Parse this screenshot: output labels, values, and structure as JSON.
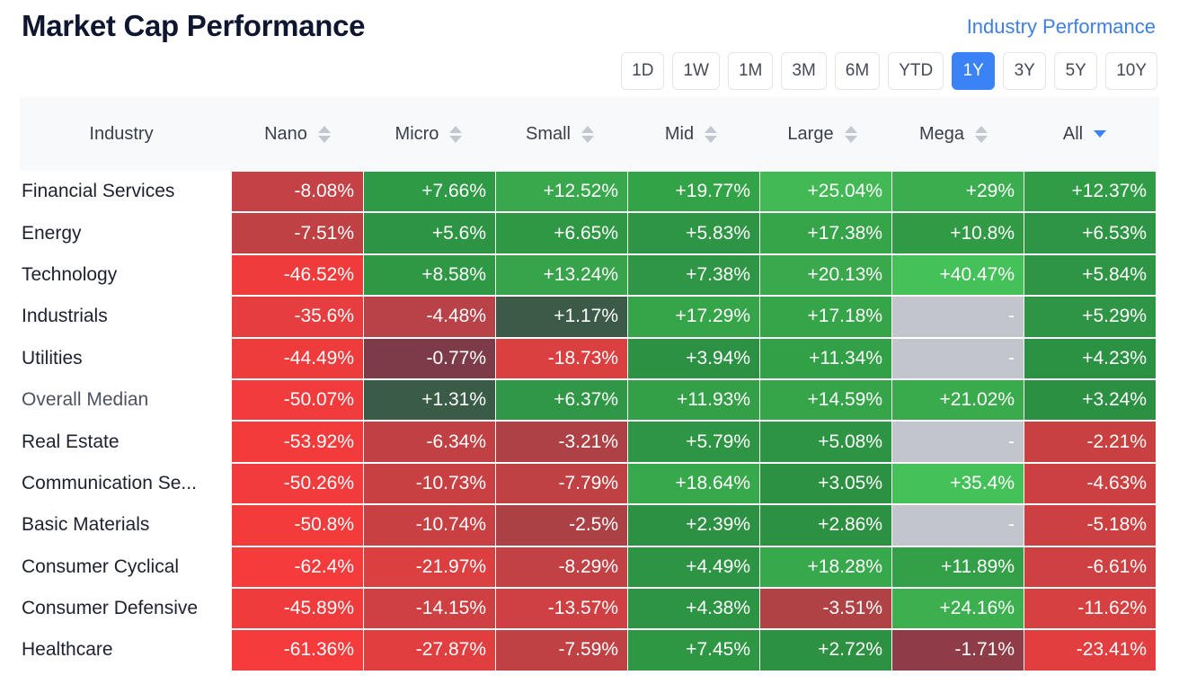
{
  "header": {
    "title": "Market Cap Performance",
    "industry_link": "Industry Performance"
  },
  "periods": [
    "1D",
    "1W",
    "1M",
    "3M",
    "6M",
    "YTD",
    "1Y",
    "3Y",
    "5Y",
    "10Y"
  ],
  "active_period": "1Y",
  "table": {
    "industry_header": "Industry",
    "columns": [
      "Nano",
      "Micro",
      "Small",
      "Mid",
      "Large",
      "Mega",
      "All"
    ],
    "sorted_column": "All",
    "rows": [
      {
        "label": "Financial Services",
        "values": [
          "-8.08%",
          "+7.66%",
          "+12.52%",
          "+19.77%",
          "+25.04%",
          "+29%",
          "+12.37%"
        ],
        "colors": [
          "#c44145",
          "#2e9a45",
          "#39a84c",
          "#33a347",
          "#42b954",
          "#3aae4f",
          "#309d46"
        ]
      },
      {
        "label": "Energy",
        "values": [
          "-7.51%",
          "+5.6%",
          "+6.65%",
          "+5.83%",
          "+17.38%",
          "+10.8%",
          "+6.53%"
        ],
        "colors": [
          "#bf4144",
          "#2c9443",
          "#2f9845",
          "#2d9544",
          "#36a449",
          "#309a45",
          "#2e9544"
        ]
      },
      {
        "label": "Technology",
        "values": [
          "-46.52%",
          "+8.58%",
          "+13.24%",
          "+7.38%",
          "+20.13%",
          "+40.47%",
          "+5.84%"
        ],
        "colors": [
          "#f03b3c",
          "#2f9845",
          "#37a34a",
          "#2e9644",
          "#3aa94d",
          "#44c158",
          "#2d9544"
        ]
      },
      {
        "label": "Industrials",
        "values": [
          "-35.6%",
          "-4.48%",
          "+1.17%",
          "+17.29%",
          "+17.18%",
          "-",
          "+5.29%"
        ],
        "colors": [
          "#e63e40",
          "#b74247",
          "#3b5a47",
          "#36a449",
          "#36a449",
          "#c2c5cc",
          "#2d9544"
        ]
      },
      {
        "label": "Utilities",
        "values": [
          "-44.49%",
          "-0.77%",
          "-18.73%",
          "+3.94%",
          "+11.34%",
          "-",
          "+4.23%"
        ],
        "colors": [
          "#ee3c3d",
          "#7c3b47",
          "#d9403f",
          "#2c9142",
          "#32a047",
          "#c2c5cc",
          "#2c9243"
        ]
      },
      {
        "label": "Overall Median",
        "values": [
          "-50.07%",
          "+1.31%",
          "+6.37%",
          "+11.93%",
          "+14.59%",
          "+21.02%",
          "+3.24%"
        ],
        "colors": [
          "#f23b3c",
          "#3a5c47",
          "#2f9745",
          "#33a047",
          "#36a449",
          "#3aab4d",
          "#2c9042"
        ]
      },
      {
        "label": "Real Estate",
        "values": [
          "-53.92%",
          "-6.34%",
          "-3.21%",
          "+5.79%",
          "+5.08%",
          "-",
          "-2.21%"
        ],
        "colors": [
          "#f43b3c",
          "#c04044",
          "#ae4145",
          "#2d9544",
          "#2d9443",
          "#c2c5cc",
          "#c8403f"
        ]
      },
      {
        "label": "Communication Se...",
        "values": [
          "-50.26%",
          "-10.73%",
          "-7.79%",
          "+18.64%",
          "+3.05%",
          "+35.4%",
          "-4.63%"
        ],
        "colors": [
          "#f23b3c",
          "#c94043",
          "#bf4144",
          "#38a84c",
          "#2d9142",
          "#44c158",
          "#cd4041"
        ]
      },
      {
        "label": "Basic Materials",
        "values": [
          "-50.8%",
          "-10.74%",
          "-2.5%",
          "+2.39%",
          "+2.86%",
          "-",
          "-5.18%"
        ],
        "colors": [
          "#f33b3c",
          "#c94043",
          "#ab4145",
          "#2c9142",
          "#2d9142",
          "#c2c5cc",
          "#cd4041"
        ]
      },
      {
        "label": "Consumer Cyclical",
        "values": [
          "-62.4%",
          "-21.97%",
          "-8.29%",
          "+4.49%",
          "+18.28%",
          "+11.89%",
          "-6.61%"
        ],
        "colors": [
          "#f53b3c",
          "#dc3f3f",
          "#c24144",
          "#2c9443",
          "#38a84c",
          "#33a047",
          "#cf4042"
        ]
      },
      {
        "label": "Consumer Defensive",
        "values": [
          "-45.89%",
          "-14.15%",
          "-13.57%",
          "+4.38%",
          "-3.51%",
          "+24.16%",
          "-11.62%"
        ],
        "colors": [
          "#f03b3c",
          "#cf4042",
          "#ce4042",
          "#2c9443",
          "#b04245",
          "#3cb04f",
          "#d64040"
        ]
      },
      {
        "label": "Healthcare",
        "values": [
          "-61.36%",
          "-27.87%",
          "-7.59%",
          "+7.45%",
          "+2.72%",
          "-1.71%",
          "-23.41%"
        ],
        "colors": [
          "#f53b3c",
          "#e13e3f",
          "#c04144",
          "#2e9744",
          "#2d9142",
          "#8e3c47",
          "#e23e3f"
        ]
      }
    ]
  }
}
